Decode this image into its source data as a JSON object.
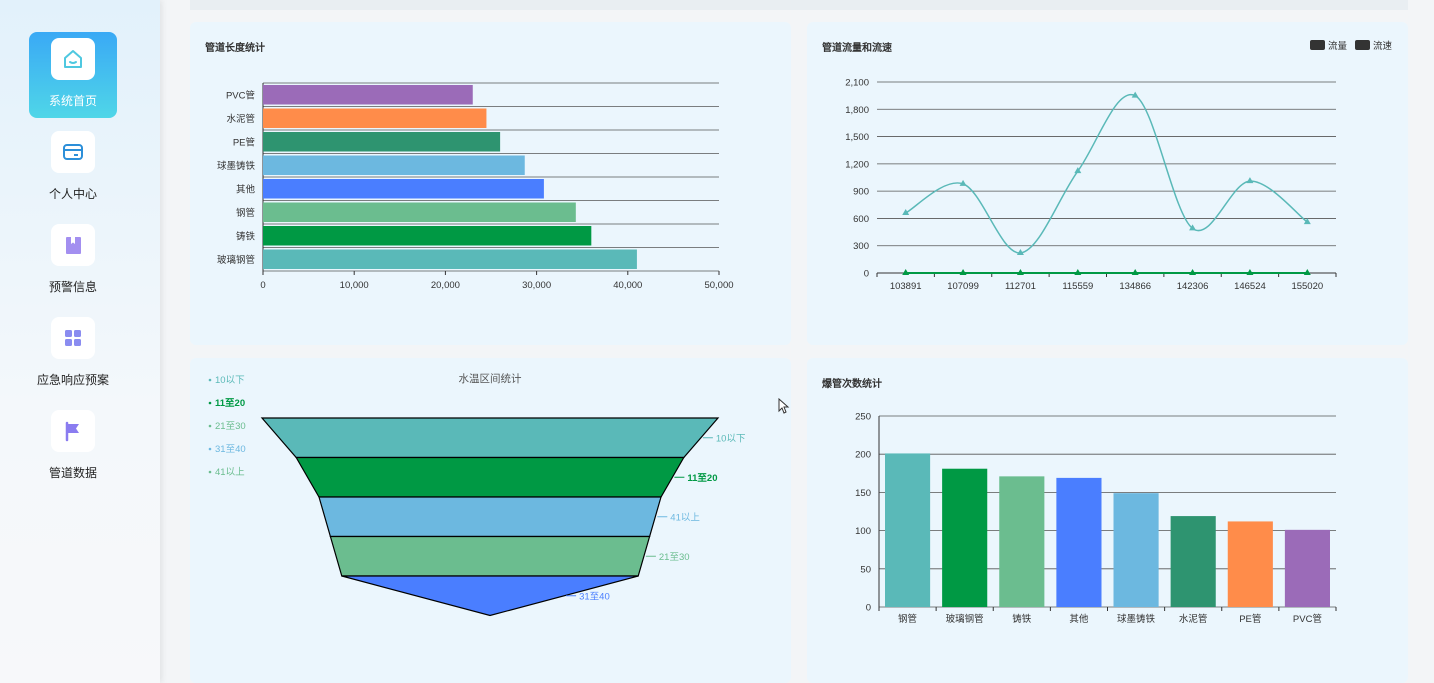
{
  "sidebar": {
    "items": [
      {
        "label": "系统首页",
        "icon": "home-icon",
        "active": true
      },
      {
        "label": "个人中心",
        "icon": "wallet-icon",
        "active": false
      },
      {
        "label": "预警信息",
        "icon": "book-icon",
        "active": false
      },
      {
        "label": "应急响应预案",
        "icon": "grid-icon",
        "active": false
      },
      {
        "label": "管道数据",
        "icon": "flag-icon",
        "active": false
      }
    ]
  },
  "panels": {
    "length": {
      "title": "管道长度统计"
    },
    "flow": {
      "title": "管道流量和流速",
      "legend": [
        "流量",
        "流速"
      ]
    },
    "temp": {
      "title": "水温区间统计"
    },
    "burst": {
      "title": "爆管次数统计"
    }
  },
  "colors": {
    "teal": "#5ab9b8",
    "green": "#009944",
    "lightgreen": "#6bbd8f",
    "blue": "#4a7eff",
    "skyblue": "#6cb8e0",
    "darkgreen": "#2e9470",
    "orange": "#ff8c4a",
    "purple": "#9b6bb8"
  },
  "chart_data": [
    {
      "id": "length",
      "type": "bar",
      "orientation": "horizontal",
      "title": "管道长度统计",
      "categories": [
        "PVC管",
        "水泥管",
        "PE管",
        "球墨铸铁",
        "其他",
        "钢管",
        "铸铁",
        "玻璃钢管"
      ],
      "values": [
        23000,
        24500,
        26000,
        28700,
        30800,
        34300,
        36000,
        41000
      ],
      "colors": [
        "#9b6bb8",
        "#ff8c4a",
        "#2e9470",
        "#6cb8e0",
        "#4a7eff",
        "#6bbd8f",
        "#009944",
        "#5ab9b8"
      ],
      "xlim": [
        0,
        50000
      ],
      "xticks": [
        "0",
        "10,000",
        "20,000",
        "30,000",
        "40,000",
        "50,000"
      ]
    },
    {
      "id": "flow",
      "type": "line",
      "title": "管道流量和流速",
      "x": [
        "103891",
        "107099",
        "112701",
        "115559",
        "134866",
        "142306",
        "146524",
        "155020"
      ],
      "series": [
        {
          "name": "流量",
          "values": [
            660,
            980,
            220,
            1120,
            1950,
            490,
            1010,
            560
          ],
          "color": "#5ab9b8"
        },
        {
          "name": "流速",
          "values": [
            0,
            0,
            0,
            0,
            0,
            0,
            0,
            0
          ],
          "color": "#009944"
        }
      ],
      "ylim": [
        0,
        2100
      ],
      "yticks": [
        "0",
        "300",
        "600",
        "900",
        "1,200",
        "1,500",
        "1,800",
        "2,100"
      ]
    },
    {
      "id": "temp",
      "type": "funnel",
      "title": "水温区间统计",
      "legend": [
        "10以下",
        "11至20",
        "21至30",
        "31至40",
        "41以上"
      ],
      "stages": [
        {
          "name": "10以下",
          "value": 100,
          "color": "#5ab9b8"
        },
        {
          "name": "11至20",
          "value": 85,
          "color": "#009944"
        },
        {
          "name": "41以上",
          "value": 75,
          "color": "#6cb8e0"
        },
        {
          "name": "21至30",
          "value": 70,
          "color": "#6bbd8f"
        },
        {
          "name": "31至40",
          "value": 65,
          "color": "#4a7eff"
        }
      ]
    },
    {
      "id": "burst",
      "type": "bar",
      "title": "爆管次数统计",
      "categories": [
        "钢管",
        "玻璃钢管",
        "铸铁",
        "其他",
        "球墨铸铁",
        "水泥管",
        "PE管",
        "PVC管"
      ],
      "values": [
        201,
        181,
        171,
        169,
        149,
        119,
        112,
        101
      ],
      "colors": [
        "#5ab9b8",
        "#009944",
        "#6bbd8f",
        "#4a7eff",
        "#6cb8e0",
        "#2e9470",
        "#ff8c4a",
        "#9b6bb8"
      ],
      "ylim": [
        0,
        250
      ],
      "yticks": [
        "0",
        "50",
        "100",
        "150",
        "200",
        "250"
      ]
    }
  ]
}
